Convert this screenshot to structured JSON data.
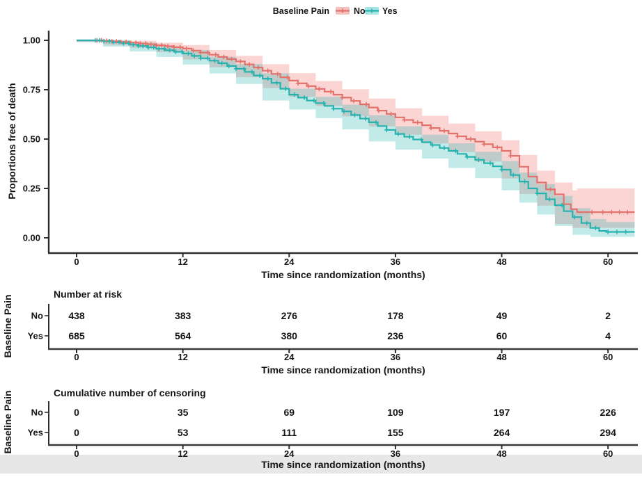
{
  "legend": {
    "title": "Baseline Pain",
    "items": [
      {
        "label": "No",
        "line_color": "#E2726B",
        "band_color": "#F5C1BD"
      },
      {
        "label": "Yes",
        "line_color": "#26B3B0",
        "band_color": "#A8E4E2"
      }
    ]
  },
  "main_plot": {
    "ylabel": "Proportions free of death",
    "xlabel": "Time since randomization (months)",
    "ytick_labels": [
      "1.00",
      "0.75",
      "0.50",
      "0.25",
      "0.00"
    ],
    "xticks": [
      0,
      12,
      24,
      36,
      48,
      60
    ]
  },
  "risk_table": {
    "title": "Number at risk",
    "side_label": "Baseline Pain",
    "xlabel": "Time since randomization (months)",
    "xticks": [
      0,
      12,
      24,
      36,
      48,
      60
    ],
    "rows": [
      {
        "label": "No",
        "label_color": "#D98F89",
        "values": [
          438,
          383,
          276,
          178,
          49,
          2
        ]
      },
      {
        "label": "Yes",
        "label_color": "#6FC9C6",
        "values": [
          685,
          564,
          380,
          236,
          60,
          4
        ]
      }
    ]
  },
  "censor_table": {
    "title": "Cumulative number of censoring",
    "side_label": "Baseline Pain",
    "xlabel": "Time since randomization (months)",
    "xticks": [
      0,
      12,
      24,
      36,
      48,
      60
    ],
    "rows": [
      {
        "label": "No",
        "label_color": "#D98F89",
        "values": [
          0,
          35,
          69,
          109,
          197,
          226
        ]
      },
      {
        "label": "Yes",
        "label_color": "#6FC9C6",
        "values": [
          0,
          53,
          111,
          155,
          264,
          294
        ]
      }
    ]
  },
  "chart_data": {
    "type": "line",
    "subtype": "kaplan-meier-step",
    "title": "",
    "xlabel": "Time since randomization (months)",
    "ylabel": "Proportions free of death",
    "xlim": [
      0,
      63
    ],
    "ylim": [
      0,
      1
    ],
    "xticks": [
      0,
      12,
      24,
      36,
      48,
      60
    ],
    "yticks": [
      0,
      0.25,
      0.5,
      0.75,
      1.0
    ],
    "grid": false,
    "legend_position": "top",
    "series": [
      {
        "name": "No",
        "color": "#E2726B",
        "band_fill": "rgba(240,125,117,0.32)",
        "points": [
          [
            0,
            1.0
          ],
          [
            2.2,
            1.0
          ],
          [
            3,
            0.998
          ],
          [
            4,
            0.995
          ],
          [
            5,
            0.992
          ],
          [
            6,
            0.988
          ],
          [
            7,
            0.984
          ],
          [
            8,
            0.98
          ],
          [
            9,
            0.975
          ],
          [
            10,
            0.97
          ],
          [
            11,
            0.965
          ],
          [
            12,
            0.958
          ],
          [
            13,
            0.948
          ],
          [
            14,
            0.938
          ],
          [
            15,
            0.927
          ],
          [
            16,
            0.916
          ],
          [
            17,
            0.905
          ],
          [
            18,
            0.893
          ],
          [
            19,
            0.878
          ],
          [
            20,
            0.862
          ],
          [
            21,
            0.846
          ],
          [
            22,
            0.83
          ],
          [
            23,
            0.813
          ],
          [
            24,
            0.796
          ],
          [
            25,
            0.782
          ],
          [
            26,
            0.768
          ],
          [
            27,
            0.754
          ],
          [
            28,
            0.74
          ],
          [
            29,
            0.725
          ],
          [
            30,
            0.71
          ],
          [
            31,
            0.693
          ],
          [
            32,
            0.676
          ],
          [
            33,
            0.66
          ],
          [
            34,
            0.644
          ],
          [
            35,
            0.627
          ],
          [
            36,
            0.61
          ],
          [
            37,
            0.597
          ],
          [
            38,
            0.584
          ],
          [
            39,
            0.57
          ],
          [
            40,
            0.556
          ],
          [
            41,
            0.542
          ],
          [
            42,
            0.528
          ],
          [
            43,
            0.514
          ],
          [
            44,
            0.5
          ],
          [
            45,
            0.487
          ],
          [
            46,
            0.474
          ],
          [
            47,
            0.458
          ],
          [
            48,
            0.44
          ],
          [
            49,
            0.415
          ],
          [
            50,
            0.36
          ],
          [
            51,
            0.31
          ],
          [
            52,
            0.28
          ],
          [
            53,
            0.245
          ],
          [
            54,
            0.22
          ],
          [
            55,
            0.17
          ],
          [
            55.8,
            0.145
          ],
          [
            56.5,
            0.13
          ],
          [
            63,
            0.13
          ]
        ],
        "band": [
          [
            0,
            1.0,
            1.0
          ],
          [
            3,
            0.993,
            1.0
          ],
          [
            6,
            0.978,
            0.998
          ],
          [
            9,
            0.962,
            0.988
          ],
          [
            12,
            0.94,
            0.976
          ],
          [
            15,
            0.903,
            0.951
          ],
          [
            18,
            0.864,
            0.922
          ],
          [
            21,
            0.813,
            0.879
          ],
          [
            24,
            0.758,
            0.834
          ],
          [
            27,
            0.714,
            0.794
          ],
          [
            30,
            0.668,
            0.752
          ],
          [
            33,
            0.615,
            0.705
          ],
          [
            36,
            0.564,
            0.656
          ],
          [
            39,
            0.522,
            0.618
          ],
          [
            42,
            0.478,
            0.578
          ],
          [
            45,
            0.435,
            0.539
          ],
          [
            48,
            0.386,
            0.494
          ],
          [
            50,
            0.3,
            0.42
          ],
          [
            52,
            0.222,
            0.34
          ],
          [
            54,
            0.163,
            0.28
          ],
          [
            56,
            0.07,
            0.24
          ],
          [
            56.5,
            0.05,
            0.25
          ],
          [
            63,
            0.05,
            0.25
          ]
        ],
        "censor_times": [
          2.3,
          2.8,
          3.4,
          4,
          4.5,
          5,
          5.6,
          6.1,
          6.7,
          7.2,
          7.8,
          8.4,
          9,
          9.6,
          10.3,
          11,
          11.7,
          12.4,
          13.2,
          14,
          14.8,
          15.7,
          16.6,
          17.5,
          18.5,
          19.5,
          20.5,
          21.6,
          22.7,
          23.8,
          25,
          26.2,
          27.4,
          28.7,
          30,
          31.3,
          32.7,
          34.1,
          35.5,
          37,
          38.5,
          40,
          41.5,
          43,
          44.5,
          46,
          47.5,
          49,
          53.5,
          58.2,
          59.4,
          60.4,
          61.3,
          62.2
        ]
      },
      {
        "name": "Yes",
        "color": "#26B3B0",
        "band_fill": "rgba(36,178,175,0.28)",
        "points": [
          [
            0,
            1.0
          ],
          [
            2,
            1.0
          ],
          [
            3,
            0.996
          ],
          [
            4,
            0.991
          ],
          [
            5,
            0.985
          ],
          [
            6,
            0.978
          ],
          [
            7,
            0.971
          ],
          [
            8,
            0.964
          ],
          [
            9,
            0.957
          ],
          [
            10,
            0.95
          ],
          [
            11,
            0.942
          ],
          [
            12,
            0.933
          ],
          [
            13,
            0.921
          ],
          [
            14,
            0.909
          ],
          [
            15,
            0.897
          ],
          [
            16,
            0.884
          ],
          [
            17,
            0.87
          ],
          [
            18,
            0.856
          ],
          [
            19,
            0.84
          ],
          [
            20,
            0.822
          ],
          [
            21,
            0.806
          ],
          [
            22,
            0.785
          ],
          [
            23,
            0.755
          ],
          [
            24,
            0.725
          ],
          [
            25,
            0.71
          ],
          [
            26,
            0.695
          ],
          [
            27,
            0.682
          ],
          [
            28,
            0.668
          ],
          [
            29,
            0.654
          ],
          [
            30,
            0.64
          ],
          [
            31,
            0.622
          ],
          [
            32,
            0.604
          ],
          [
            33,
            0.585
          ],
          [
            34,
            0.566
          ],
          [
            35,
            0.546
          ],
          [
            36,
            0.526
          ],
          [
            37,
            0.512
          ],
          [
            38,
            0.498
          ],
          [
            39,
            0.484
          ],
          [
            40,
            0.47
          ],
          [
            41,
            0.455
          ],
          [
            42,
            0.44
          ],
          [
            43,
            0.425
          ],
          [
            44,
            0.41
          ],
          [
            45,
            0.395
          ],
          [
            46,
            0.378
          ],
          [
            47,
            0.362
          ],
          [
            48,
            0.345
          ],
          [
            49,
            0.318
          ],
          [
            50,
            0.285
          ],
          [
            51,
            0.25
          ],
          [
            52,
            0.225
          ],
          [
            53,
            0.195
          ],
          [
            54,
            0.165
          ],
          [
            55,
            0.135
          ],
          [
            56,
            0.105
          ],
          [
            57,
            0.075
          ],
          [
            58,
            0.05
          ],
          [
            59,
            0.035
          ],
          [
            59.8,
            0.03
          ],
          [
            63,
            0.03
          ]
        ],
        "band": [
          [
            0,
            1.0,
            1.0
          ],
          [
            3,
            0.991,
            1.0
          ],
          [
            6,
            0.968,
            0.988
          ],
          [
            9,
            0.944,
            0.97
          ],
          [
            12,
            0.916,
            0.95
          ],
          [
            15,
            0.877,
            0.917
          ],
          [
            18,
            0.832,
            0.88
          ],
          [
            21,
            0.779,
            0.833
          ],
          [
            24,
            0.695,
            0.755
          ],
          [
            27,
            0.65,
            0.714
          ],
          [
            30,
            0.606,
            0.674
          ],
          [
            33,
            0.549,
            0.621
          ],
          [
            36,
            0.488,
            0.564
          ],
          [
            39,
            0.446,
            0.522
          ],
          [
            42,
            0.401,
            0.479
          ],
          [
            45,
            0.354,
            0.436
          ],
          [
            48,
            0.302,
            0.388
          ],
          [
            50,
            0.24,
            0.33
          ],
          [
            52,
            0.178,
            0.272
          ],
          [
            54,
            0.118,
            0.212
          ],
          [
            56,
            0.06,
            0.15
          ],
          [
            58,
            0.015,
            0.095
          ],
          [
            59.8,
            0.005,
            0.08
          ],
          [
            63,
            0.005,
            0.08
          ]
        ],
        "censor_times": [
          2.1,
          2.6,
          3.1,
          3.7,
          4.2,
          4.8,
          5.3,
          5.9,
          6.4,
          7,
          7.5,
          8.1,
          8.7,
          9.3,
          9.9,
          10.5,
          11.2,
          11.9,
          12.6,
          13.3,
          14,
          14.8,
          15.6,
          16.4,
          17.2,
          18,
          18.9,
          19.8,
          20.7,
          21.6,
          22.6,
          23.6,
          24.6,
          25.7,
          26.8,
          27.9,
          29,
          30.2,
          31.4,
          32.6,
          33.8,
          35,
          36.3,
          37.6,
          38.9,
          40.2,
          41.5,
          42.8,
          44.1,
          45.4,
          46.7,
          48,
          49.3,
          50.6,
          52,
          53.4,
          54.8,
          56.2,
          57.6,
          58.6,
          60,
          61,
          62
        ]
      }
    ],
    "risk_table": {
      "title": "Number at risk",
      "times": [
        0,
        12,
        24,
        36,
        48,
        60
      ],
      "No": [
        438,
        383,
        276,
        178,
        49,
        2
      ],
      "Yes": [
        685,
        564,
        380,
        236,
        60,
        4
      ]
    },
    "cumulative_censoring_table": {
      "title": "Cumulative number of censoring",
      "times": [
        0,
        12,
        24,
        36,
        48,
        60
      ],
      "No": [
        0,
        35,
        69,
        109,
        197,
        226
      ],
      "Yes": [
        0,
        53,
        111,
        155,
        264,
        294
      ]
    }
  }
}
